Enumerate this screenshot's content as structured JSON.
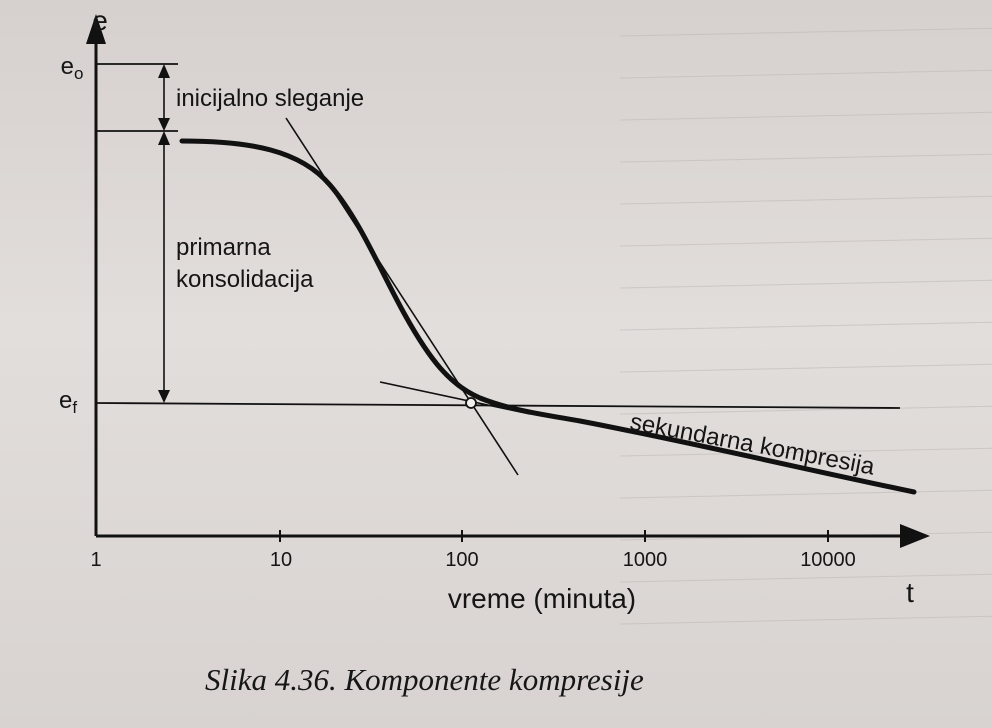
{
  "diagram": {
    "y_axis_label": "e",
    "x_axis_label": "t",
    "x_axis_title": "vreme (minuta)",
    "x_ticks": [
      "1",
      "10",
      "100",
      "1000",
      "10000"
    ],
    "e0_label": "e",
    "e0_sub": "o",
    "ef_label": "e",
    "ef_sub": "f",
    "label_initial": "inicijalno sleganje",
    "label_primary_1": "primarna",
    "label_primary_2": "konsolidacija",
    "label_secondary": "sekundarna kompresija",
    "caption": "Slika 4.36. Komponente kompresije"
  }
}
